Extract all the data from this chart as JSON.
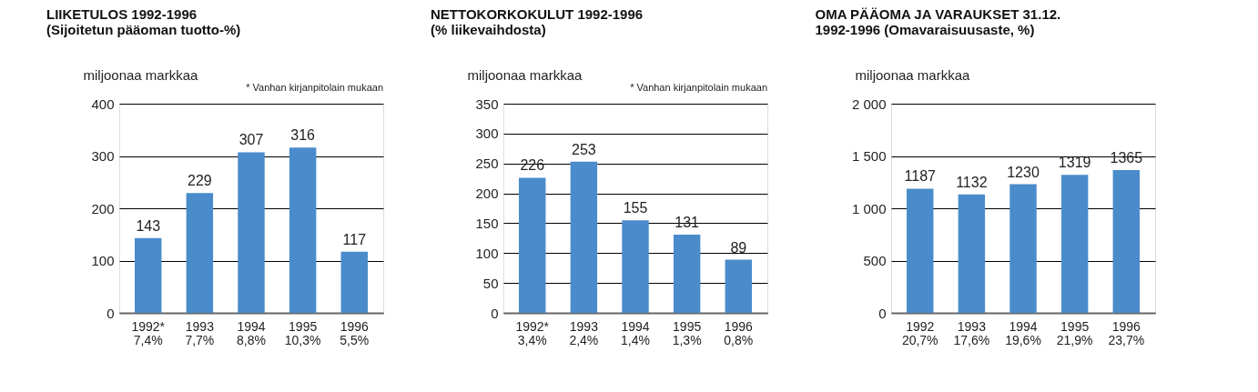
{
  "chart_data": [
    {
      "type": "bar",
      "title": "LIIKETULOS 1992-1996\n(Sijoitetun pääoman tuotto-%)",
      "ylabel": "miljoonaa markkaa",
      "annotations": [
        "* Vanhan kirjanpitolain mukaan"
      ],
      "categories": [
        "1992*\n7,4%",
        "1993\n7,7%",
        "1994\n8,8%",
        "1995\n10,3%",
        "1996\n5,5%"
      ],
      "values": [
        143,
        229,
        307,
        316,
        117
      ],
      "color": "#4a8ccb",
      "ylim": [
        0,
        400
      ],
      "yticks": [
        0,
        100,
        200,
        300,
        400
      ],
      "grid": "y",
      "data_labels": true
    },
    {
      "type": "bar",
      "title": "NETTOKORKOKULUT 1992-1996\n(% liikevaihdosta)",
      "ylabel": "miljoonaa markkaa",
      "annotations": [
        "* Vanhan kirjanpitolain mukaan"
      ],
      "categories": [
        "1992*\n3,4%",
        "1993\n2,4%",
        "1994\n1,4%",
        "1995\n1,3%",
        "1996\n0,8%"
      ],
      "values": [
        226,
        253,
        155,
        131,
        89
      ],
      "color": "#4a8ccb",
      "ylim": [
        0,
        350
      ],
      "yticks": [
        0,
        50,
        100,
        150,
        200,
        250,
        300,
        350
      ],
      "grid": "y",
      "data_labels": true
    },
    {
      "type": "bar",
      "title": "OMA PÄÄOMA JA VARAUKSET 31.12.\n1992-1996 (Omavaraisuusaste, %)",
      "ylabel": "miljoonaa markkaa",
      "categories": [
        "1992\n20,7%",
        "1993\n17,6%",
        "1994\n19,6%",
        "1995\n21,9%",
        "1996\n23,7%"
      ],
      "values": [
        1187,
        1132,
        1230,
        1319,
        1365
      ],
      "color": "#4a8ccb",
      "ylim": [
        0,
        2000
      ],
      "yticks": [
        0,
        500,
        {
          "value": 1000,
          "label": "1 000"
        },
        {
          "value": 1500,
          "label": "1 500"
        },
        {
          "value": 2000,
          "label": "2 000"
        }
      ],
      "grid": "y",
      "data_labels": true
    }
  ]
}
